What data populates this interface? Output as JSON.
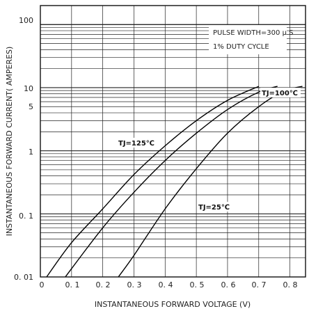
{
  "chart_data": {
    "type": "line",
    "xlabel": "INSTANTANEOUS FORWARD VOLTAGE (V)",
    "ylabel": "INSTANTANEOUS FORWARD CURRENT( AMPERES)",
    "xlim": [
      0,
      0.85
    ],
    "ylim": [
      0.01,
      200
    ],
    "yscale": "log",
    "grid": true,
    "x_ticks": [
      "0",
      "0. 1",
      "0. 2",
      "0. 3",
      "0. 4",
      "0. 5",
      "0. 6",
      "0. 7",
      "0. 8"
    ],
    "y_ticks": [
      "100",
      "10",
      "5",
      "1",
      "0. 1",
      "0. 01"
    ],
    "annotations": [
      "PULSE WIDTH=300 μ S",
      "1% DUTY CYCLE"
    ],
    "series": [
      {
        "name": "TJ=125℃",
        "x": [
          0.02,
          0.1,
          0.2,
          0.3,
          0.4,
          0.5,
          0.6,
          0.7
        ],
        "y": [
          0.01,
          0.035,
          0.12,
          0.42,
          1.2,
          3.0,
          6.3,
          10.5
        ]
      },
      {
        "name": "TJ=100℃",
        "x": [
          0.08,
          0.2,
          0.3,
          0.4,
          0.5,
          0.6,
          0.7,
          0.76
        ],
        "y": [
          0.01,
          0.06,
          0.22,
          0.7,
          1.9,
          4.5,
          8.5,
          10.5
        ]
      },
      {
        "name": "TJ=25℃",
        "x": [
          0.25,
          0.3,
          0.4,
          0.5,
          0.6,
          0.7,
          0.78,
          0.84
        ],
        "y": [
          0.01,
          0.022,
          0.12,
          0.52,
          1.9,
          5.0,
          8.8,
          10.5
        ]
      }
    ],
    "labels": {
      "s125": "TJ=125℃",
      "s100": "TJ=100℃",
      "s25": "TJ=25℃"
    }
  }
}
